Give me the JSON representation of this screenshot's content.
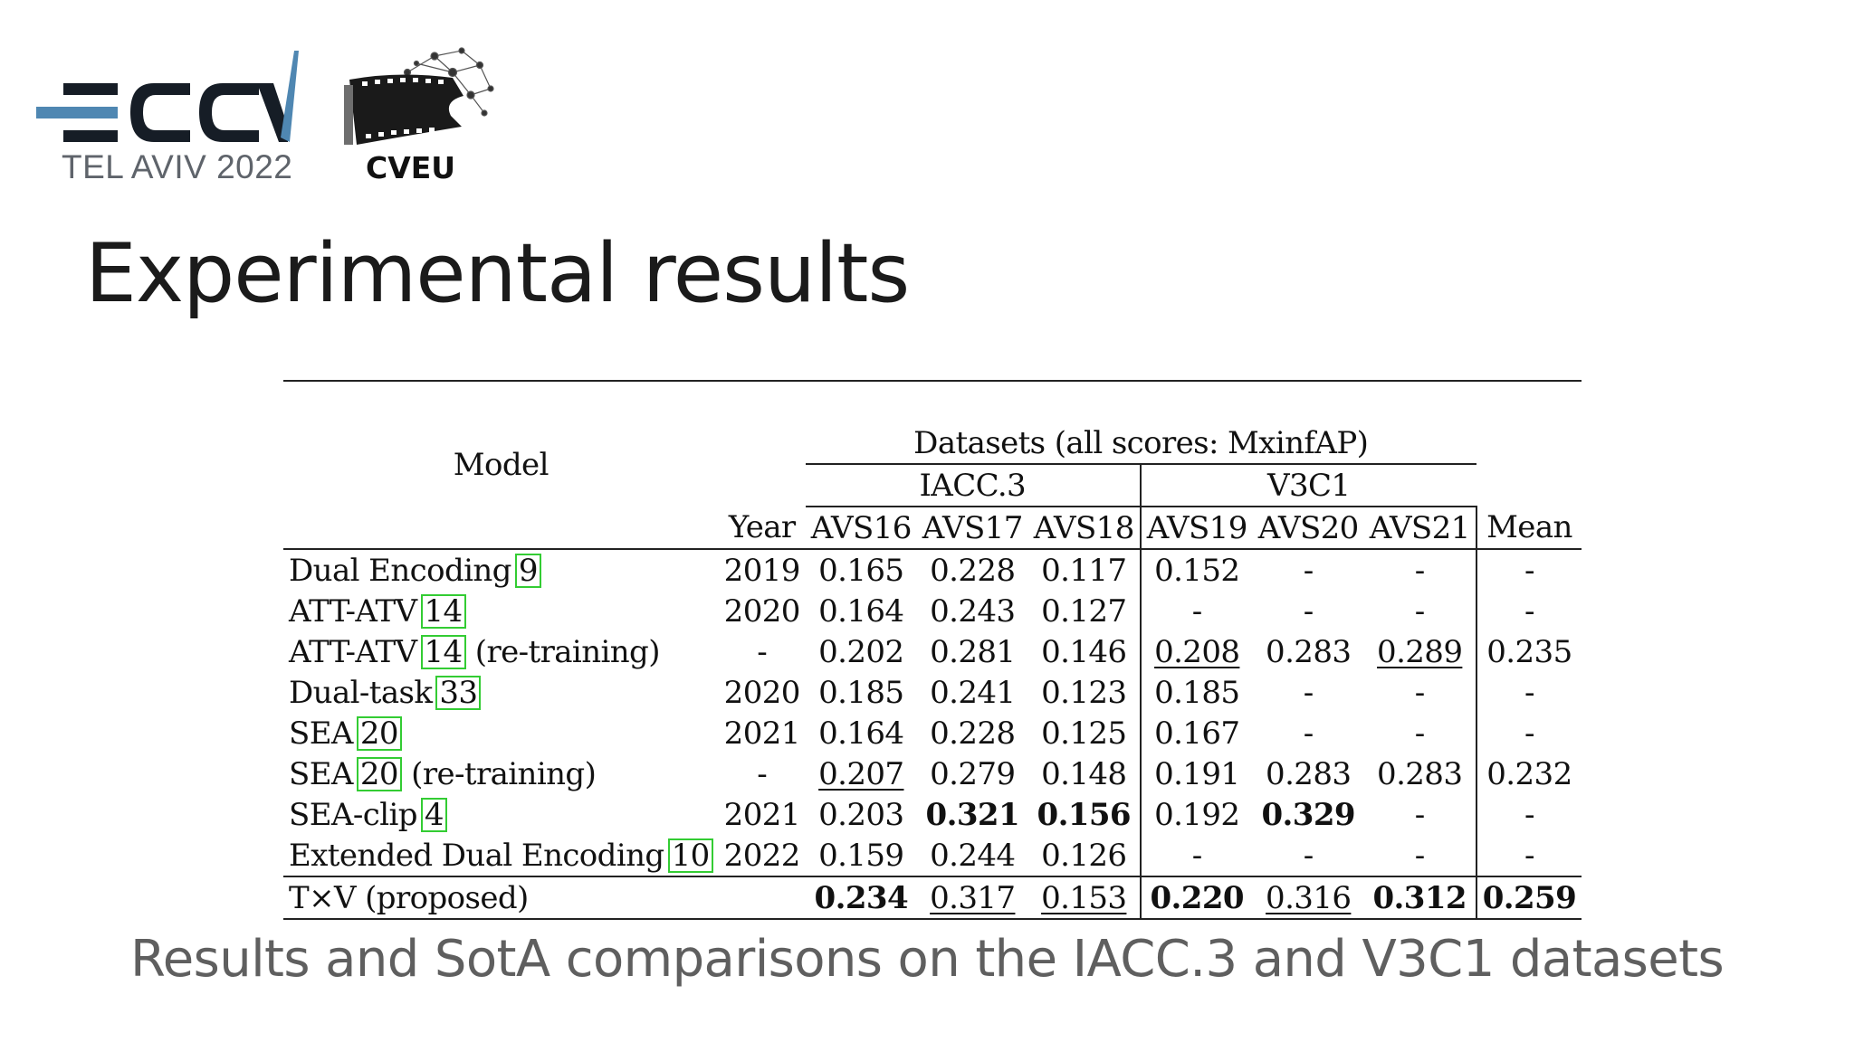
{
  "logos": {
    "eccv_subtitle": "TEL AVIV 2022",
    "cveu_label": "CVEU",
    "colors": {
      "eccv_bars": "#161d26",
      "eccv_accent": "#4f87b2",
      "eccv_text": "#5f646b"
    }
  },
  "title": "Experimental results",
  "table": {
    "model_header": "Model",
    "datasets_header": "Datasets (all scores: MxinfAP)",
    "group_iacc": "IACC.3",
    "group_v3c1": "V3C1",
    "columns": [
      "Year",
      "AVS16",
      "AVS17",
      "AVS18",
      "AVS19",
      "AVS20",
      "AVS21",
      "Mean"
    ],
    "rows": [
      {
        "model": "Dual Encoding",
        "ref": "9",
        "suffix": "",
        "cells": [
          "2019",
          "0.165",
          "0.228",
          "0.117",
          "0.152",
          "-",
          "-",
          "-"
        ]
      },
      {
        "model": "ATT-ATV",
        "ref": "14",
        "suffix": "",
        "cells": [
          "2020",
          "0.164",
          "0.243",
          "0.127",
          "-",
          "-",
          "-",
          "-"
        ]
      },
      {
        "model": "ATT-ATV",
        "ref": "14",
        "suffix": "(re-training)",
        "cells": [
          "-",
          "0.202",
          "0.281",
          "0.146",
          "0.208",
          "0.283",
          "0.289",
          "0.235"
        ]
      },
      {
        "model": "Dual-task",
        "ref": "33",
        "suffix": "",
        "cells": [
          "2020",
          "0.185",
          "0.241",
          "0.123",
          "0.185",
          "-",
          "-",
          "-"
        ]
      },
      {
        "model": "SEA",
        "ref": "20",
        "suffix": "",
        "cells": [
          "2021",
          "0.164",
          "0.228",
          "0.125",
          "0.167",
          "-",
          "-",
          "-"
        ]
      },
      {
        "model": "SEA",
        "ref": "20",
        "suffix": "(re-training)",
        "cells": [
          "-",
          "0.207",
          "0.279",
          "0.148",
          "0.191",
          "0.283",
          "0.283",
          "0.232"
        ]
      },
      {
        "model": "SEA-clip",
        "ref": "4",
        "suffix": "",
        "cells": [
          "2021",
          "0.203",
          "0.321",
          "0.156",
          "0.192",
          "0.329",
          "-",
          "-"
        ]
      },
      {
        "model": "Extended Dual Encoding",
        "ref": "10",
        "suffix": "",
        "cells": [
          "2022",
          "0.159",
          "0.244",
          "0.126",
          "-",
          "-",
          "-",
          "-"
        ]
      }
    ],
    "proposed": {
      "model": "T×V (proposed)",
      "cells": [
        "",
        "0.234",
        "0.317",
        "0.153",
        "0.220",
        "0.316",
        "0.312",
        "0.259"
      ]
    }
  },
  "caption": "Results and SotA comparisons on the IACC.3 and V3C1 datasets"
}
